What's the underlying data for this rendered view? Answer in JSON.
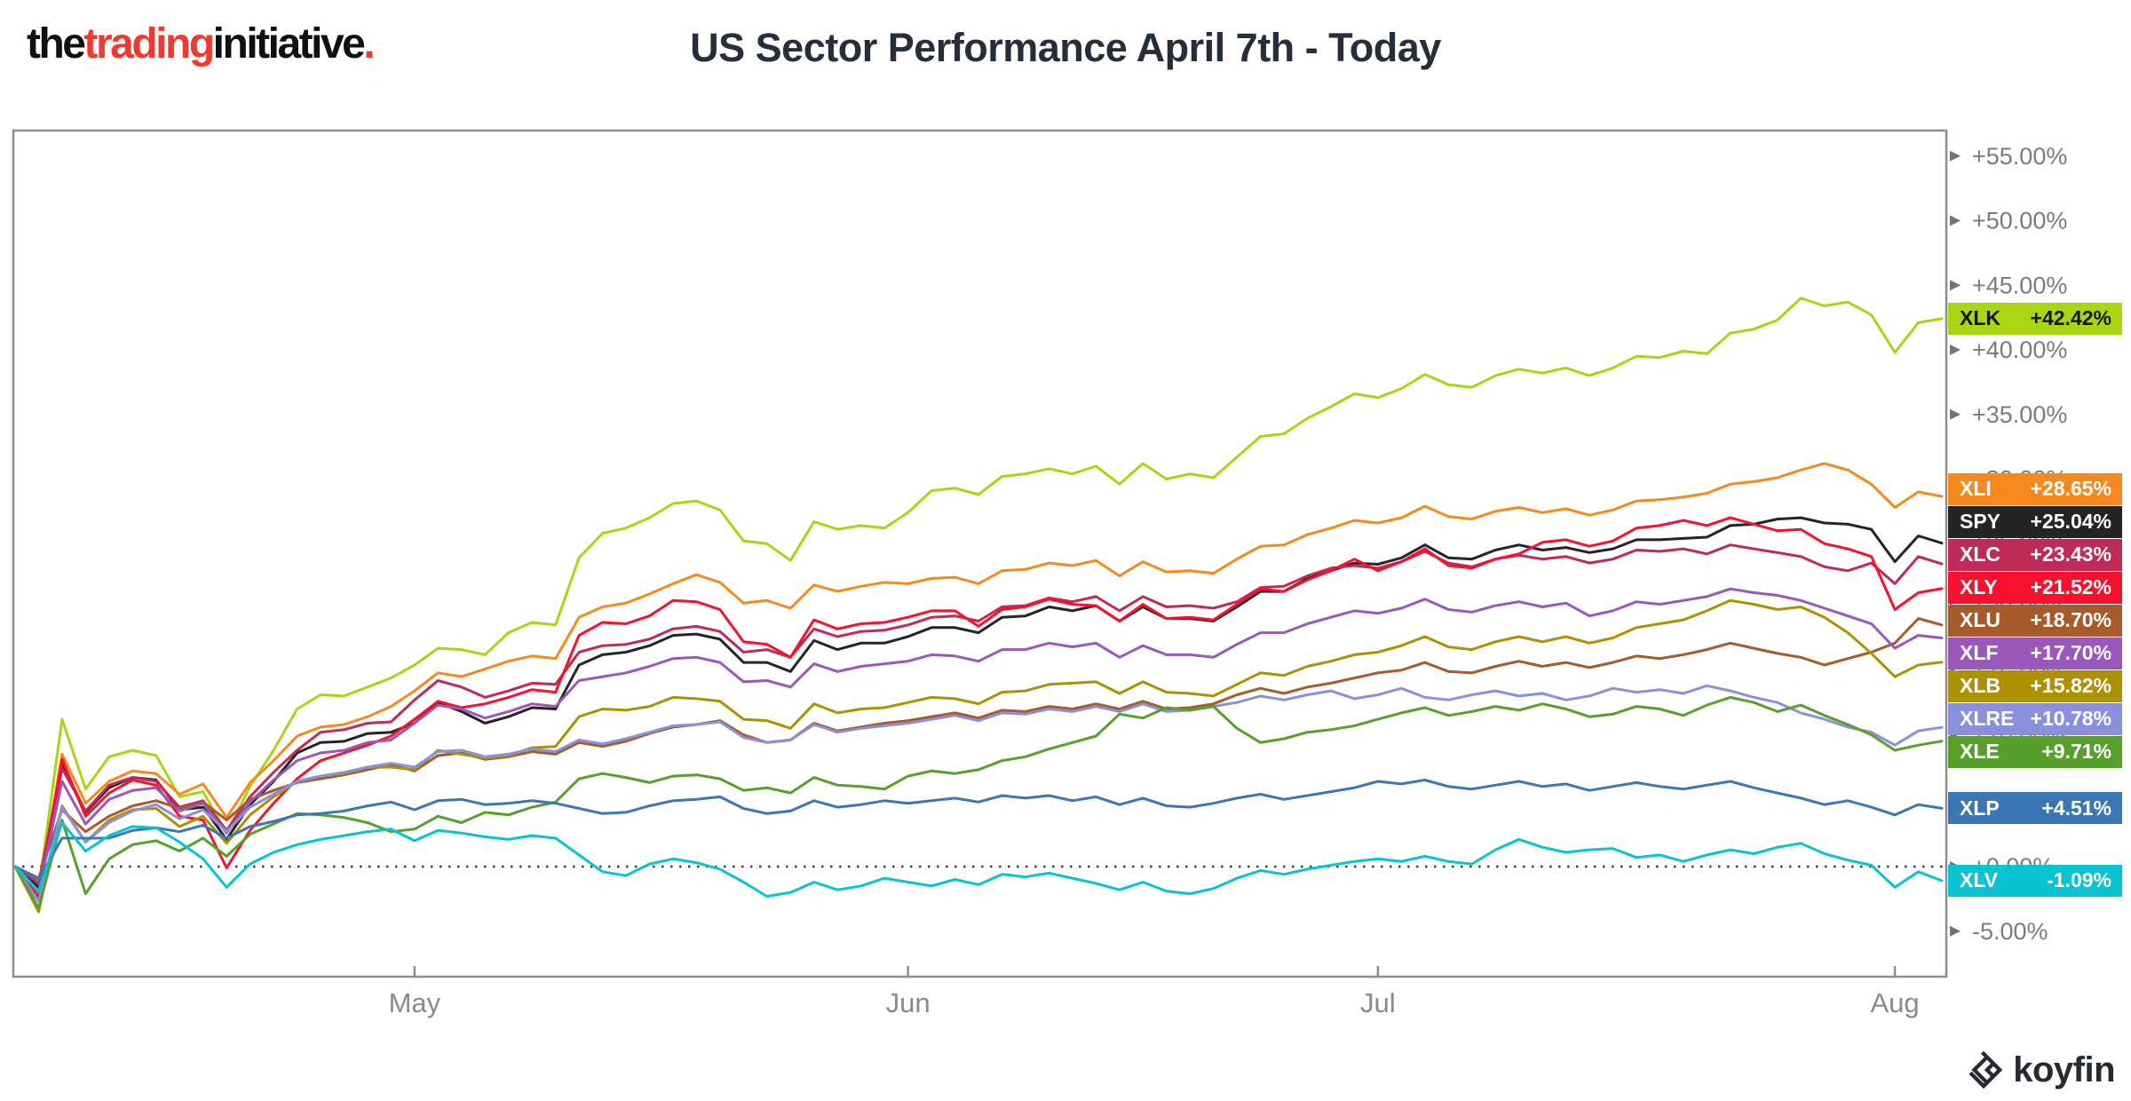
{
  "header": {
    "logo": {
      "p1": "the",
      "p2": "trading",
      "p3": "initiative",
      "p4": "."
    },
    "title": "US Sector Performance April 7th - Today"
  },
  "watermark": {
    "label": "koyfin"
  },
  "chart_data": {
    "type": "line",
    "title": "US Sector Performance April 7th - Today",
    "x_axis": {
      "description": "Daily points, trading days Apr 7 2025 through today (early Aug)",
      "points": 83,
      "ticks": [
        {
          "label": "May",
          "index": 17
        },
        {
          "label": "Jun",
          "index": 38
        },
        {
          "label": "Jul",
          "index": 58
        },
        {
          "label": "Aug",
          "index": 80
        }
      ]
    },
    "y_axis": {
      "unit": "%",
      "zero_line": 0,
      "ticks": [
        {
          "value": 55,
          "label": "+55.00%"
        },
        {
          "value": 50,
          "label": "+50.00%"
        },
        {
          "value": 45,
          "label": "+45.00%"
        },
        {
          "value": 40,
          "label": "+40.00%"
        },
        {
          "value": 35,
          "label": "+35.00%"
        },
        {
          "value": 30,
          "label": "+30.00%"
        },
        {
          "value": 25,
          "label": "+25.00%"
        },
        {
          "value": 20,
          "label": "+20.00%"
        },
        {
          "value": 15,
          "label": "+15.00%"
        },
        {
          "value": 10,
          "label": "+10.00%"
        },
        {
          "value": 5,
          "label": "+5.00%"
        },
        {
          "value": 0,
          "label": "+0.00%"
        },
        {
          "value": -5,
          "label": "-5.00%"
        }
      ]
    },
    "series": [
      {
        "ticker": "XLK",
        "final_value": 42.42,
        "final_label": "+42.42%",
        "color": "#a8d613",
        "badge_text_color": "#161616",
        "values": [
          0,
          -1.8,
          11.4,
          6.0,
          8.5,
          9.0,
          8.6,
          5.4,
          5.8,
          2.6,
          6.2,
          9.0,
          12.2,
          13.3,
          13.2,
          13.9,
          14.6,
          15.6,
          16.9,
          16.8,
          16.4,
          18.1,
          18.9,
          18.7,
          23.9,
          25.8,
          26.2,
          27.0,
          28.1,
          28.3,
          27.6,
          25.2,
          25.0,
          23.7,
          26.7,
          26.1,
          26.4,
          26.2,
          27.4,
          29.1,
          29.3,
          28.8,
          30.2,
          30.4,
          30.8,
          30.4,
          31.0,
          29.6,
          31.2,
          30.0,
          30.4,
          30.1,
          31.7,
          33.3,
          33.5,
          34.7,
          35.6,
          36.6,
          36.3,
          37.0,
          38.1,
          37.3,
          37.1,
          38.0,
          38.5,
          38.2,
          38.6,
          38.0,
          38.6,
          39.5,
          39.4,
          39.9,
          39.7,
          41.3,
          41.6,
          42.3,
          44.0,
          43.4,
          43.7,
          42.7,
          39.8,
          42.1,
          42.42
        ]
      },
      {
        "ticker": "XLI",
        "final_value": 28.65,
        "final_label": "+28.65%",
        "color": "#f8891e",
        "badge_text_color": "#ffffff",
        "values": [
          0,
          -2.1,
          8.7,
          4.9,
          6.6,
          7.4,
          7.2,
          5.6,
          6.4,
          3.8,
          6.5,
          8.2,
          10.1,
          10.8,
          11.0,
          11.6,
          12.4,
          13.6,
          15.0,
          14.7,
          15.3,
          15.9,
          16.3,
          16.1,
          19.3,
          20.1,
          20.4,
          21.1,
          21.9,
          22.6,
          22.0,
          20.4,
          20.6,
          20.0,
          21.8,
          21.3,
          21.7,
          22.0,
          21.9,
          22.3,
          22.4,
          21.9,
          22.9,
          23.0,
          23.5,
          23.3,
          23.7,
          22.5,
          23.6,
          22.8,
          22.9,
          22.7,
          23.8,
          24.8,
          24.9,
          25.7,
          26.2,
          26.8,
          26.6,
          27.0,
          27.9,
          27.1,
          26.9,
          27.5,
          27.8,
          27.4,
          27.7,
          27.2,
          27.6,
          28.3,
          28.4,
          28.6,
          28.9,
          29.6,
          29.8,
          30.1,
          30.7,
          31.2,
          30.7,
          29.6,
          27.8,
          29.0,
          28.65
        ]
      },
      {
        "ticker": "SPY",
        "final_value": 25.04,
        "final_label": "+25.04%",
        "color": "#242424",
        "badge_text_color": "#ffffff",
        "values": [
          0,
          -1.6,
          8.0,
          4.2,
          6.1,
          6.9,
          6.7,
          4.4,
          4.6,
          2.1,
          4.8,
          6.6,
          8.8,
          9.6,
          9.7,
          10.3,
          10.4,
          11.1,
          12.7,
          12.0,
          11.1,
          11.6,
          12.3,
          12.2,
          15.6,
          16.4,
          16.6,
          17.1,
          17.9,
          18.0,
          17.6,
          15.8,
          15.8,
          15.1,
          17.5,
          16.8,
          17.3,
          17.3,
          17.8,
          18.5,
          18.5,
          18.1,
          19.3,
          19.4,
          20.1,
          19.8,
          20.2,
          19.0,
          20.1,
          19.2,
          19.2,
          19.0,
          20.1,
          21.3,
          21.3,
          22.3,
          22.9,
          23.5,
          23.4,
          23.9,
          24.9,
          23.9,
          23.8,
          24.5,
          24.9,
          24.5,
          24.7,
          24.3,
          24.6,
          25.3,
          25.3,
          25.4,
          25.5,
          26.4,
          26.5,
          26.9,
          27.0,
          26.6,
          26.5,
          26.1,
          23.6,
          25.6,
          25.04
        ]
      },
      {
        "ticker": "XLC",
        "final_value": 23.43,
        "final_label": "+23.43%",
        "color": "#c02a57",
        "badge_text_color": "#ffffff",
        "values": [
          0,
          -1.3,
          7.6,
          4.3,
          6.3,
          6.9,
          6.6,
          4.6,
          5.1,
          2.8,
          5.4,
          7.3,
          9.0,
          10.4,
          10.6,
          11.1,
          11.2,
          12.9,
          14.4,
          13.9,
          13.1,
          13.6,
          14.2,
          14.1,
          16.6,
          17.1,
          17.2,
          17.6,
          18.4,
          18.6,
          18.2,
          16.6,
          16.8,
          16.2,
          18.4,
          17.8,
          18.2,
          18.3,
          18.7,
          19.3,
          19.4,
          19.0,
          20.1,
          20.2,
          20.8,
          20.5,
          20.9,
          19.8,
          20.9,
          20.1,
          20.2,
          20.0,
          20.5,
          21.6,
          21.7,
          22.5,
          23.1,
          23.3,
          23.1,
          23.6,
          24.4,
          23.5,
          23.2,
          23.8,
          24.1,
          23.8,
          24.0,
          23.5,
          23.8,
          24.5,
          24.4,
          24.6,
          24.2,
          24.9,
          24.6,
          24.3,
          24.0,
          23.2,
          22.9,
          23.5,
          21.9,
          24.0,
          23.43
        ]
      },
      {
        "ticker": "XLY",
        "final_value": 21.52,
        "final_label": "+21.52%",
        "color": "#f8112e",
        "badge_text_color": "#ffffff",
        "values": [
          0,
          -2.4,
          8.3,
          3.9,
          5.7,
          6.7,
          6.3,
          3.9,
          3.6,
          -0.1,
          2.8,
          4.9,
          6.8,
          8.2,
          8.8,
          9.4,
          10.1,
          11.4,
          12.8,
          12.3,
          12.6,
          13.1,
          13.7,
          13.5,
          17.9,
          18.9,
          18.8,
          19.4,
          20.6,
          20.5,
          19.9,
          17.4,
          17.2,
          16.2,
          19.1,
          18.4,
          18.8,
          18.9,
          19.3,
          19.8,
          19.8,
          18.6,
          19.9,
          20.1,
          20.7,
          20.3,
          20.2,
          19.0,
          20.3,
          19.2,
          19.3,
          19.1,
          20.3,
          21.5,
          21.3,
          22.2,
          22.9,
          23.8,
          22.9,
          23.6,
          24.6,
          23.3,
          23.1,
          23.8,
          24.2,
          25.1,
          25.3,
          24.8,
          25.2,
          26.2,
          26.4,
          26.8,
          26.4,
          27.0,
          26.5,
          26.0,
          26.1,
          25.0,
          24.6,
          24.0,
          19.9,
          21.2,
          21.52
        ]
      },
      {
        "ticker": "XLU",
        "final_value": 18.7,
        "final_label": "+18.70%",
        "color": "#a75a2a",
        "badge_text_color": "#ffffff",
        "values": [
          0,
          -0.9,
          4.4,
          2.7,
          3.9,
          4.7,
          5.1,
          4.5,
          5.0,
          3.6,
          5.2,
          5.9,
          6.5,
          6.8,
          7.1,
          7.5,
          7.9,
          7.4,
          8.6,
          8.8,
          8.3,
          8.5,
          8.9,
          8.7,
          9.6,
          9.3,
          9.7,
          10.3,
          10.8,
          11.0,
          11.3,
          10.2,
          9.6,
          9.8,
          11.1,
          10.5,
          10.8,
          11.1,
          11.3,
          11.6,
          11.9,
          11.5,
          12.1,
          12.0,
          12.4,
          12.2,
          12.6,
          12.2,
          12.8,
          12.2,
          12.3,
          12.6,
          13.3,
          13.8,
          13.4,
          13.9,
          14.2,
          14.6,
          15.0,
          15.2,
          15.8,
          15.1,
          15.0,
          15.5,
          15.9,
          15.5,
          15.8,
          15.4,
          15.8,
          16.3,
          16.1,
          16.4,
          16.8,
          17.3,
          16.9,
          16.5,
          16.2,
          15.6,
          16.1,
          16.6,
          17.3,
          19.2,
          18.7
        ]
      },
      {
        "ticker": "XLF",
        "final_value": 17.7,
        "final_label": "+17.70%",
        "color": "#9b57ba",
        "badge_text_color": "#ffffff",
        "values": [
          0,
          -2.0,
          6.6,
          3.3,
          5.2,
          5.9,
          6.1,
          4.3,
          4.9,
          2.6,
          5.0,
          6.7,
          8.2,
          8.8,
          9.0,
          9.6,
          9.8,
          11.1,
          12.5,
          12.2,
          11.5,
          12.0,
          12.6,
          12.4,
          14.4,
          14.7,
          15.0,
          15.5,
          16.1,
          16.2,
          15.8,
          14.3,
          14.4,
          13.9,
          15.7,
          15.1,
          15.5,
          15.7,
          15.9,
          16.4,
          16.3,
          15.9,
          16.8,
          16.8,
          17.3,
          17.0,
          17.3,
          16.2,
          17.1,
          16.4,
          16.4,
          16.2,
          17.2,
          18.1,
          18.1,
          18.8,
          19.3,
          19.8,
          19.6,
          20.0,
          20.7,
          19.9,
          19.7,
          20.2,
          20.5,
          20.1,
          20.4,
          19.4,
          19.8,
          20.5,
          20.3,
          20.6,
          20.9,
          21.5,
          21.2,
          21.0,
          20.6,
          20.0,
          19.4,
          18.8,
          16.9,
          17.9,
          17.7
        ]
      },
      {
        "ticker": "XLB",
        "final_value": 15.82,
        "final_label": "+15.82%",
        "color": "#ae9102",
        "badge_text_color": "#ffffff",
        "values": [
          0,
          -3.5,
          4.7,
          1.9,
          3.6,
          4.4,
          4.5,
          3.1,
          3.9,
          1.8,
          4.0,
          5.4,
          6.6,
          7.0,
          7.2,
          7.7,
          7.7,
          7.5,
          9.0,
          8.7,
          8.4,
          8.6,
          9.2,
          9.3,
          11.6,
          12.2,
          12.1,
          12.4,
          13.1,
          13.0,
          12.8,
          11.4,
          11.3,
          10.7,
          12.6,
          11.9,
          12.2,
          12.3,
          12.7,
          13.1,
          13.0,
          12.6,
          13.5,
          13.6,
          14.1,
          14.2,
          14.3,
          13.4,
          14.3,
          13.5,
          13.4,
          13.2,
          14.1,
          15.0,
          14.8,
          15.5,
          15.9,
          16.4,
          16.6,
          17.1,
          17.8,
          17.0,
          16.8,
          17.4,
          17.8,
          17.4,
          17.8,
          17.3,
          17.7,
          18.5,
          18.8,
          19.1,
          19.8,
          20.6,
          20.3,
          19.9,
          20.1,
          19.3,
          18.1,
          16.5,
          14.7,
          15.6,
          15.82
        ]
      },
      {
        "ticker": "XLRE",
        "final_value": 10.78,
        "final_label": "+10.78%",
        "color": "#8a90dc",
        "badge_text_color": "#ffffff",
        "values": [
          0,
          -2.7,
          4.6,
          1.9,
          3.4,
          4.3,
          4.8,
          3.7,
          4.4,
          2.7,
          4.6,
          5.6,
          6.6,
          7.0,
          7.3,
          7.7,
          8.0,
          7.7,
          8.9,
          9.0,
          8.5,
          8.7,
          9.1,
          8.9,
          9.8,
          9.5,
          9.9,
          10.4,
          10.9,
          11.0,
          11.2,
          10.0,
          9.6,
          9.8,
          11.0,
          10.4,
          10.7,
          10.9,
          11.1,
          11.4,
          11.7,
          11.3,
          11.9,
          11.8,
          12.2,
          12.0,
          12.4,
          12.0,
          12.6,
          12.0,
          12.1,
          12.4,
          12.7,
          13.2,
          12.9,
          13.3,
          13.6,
          13.0,
          13.3,
          13.8,
          13.1,
          12.9,
          13.3,
          13.6,
          13.2,
          13.4,
          12.9,
          13.2,
          13.8,
          13.5,
          13.7,
          13.4,
          14.0,
          13.6,
          13.1,
          12.7,
          11.9,
          11.4,
          10.8,
          10.4,
          9.4,
          10.5,
          10.78
        ]
      },
      {
        "ticker": "XLE",
        "final_value": 9.71,
        "final_label": "+9.71%",
        "color": "#58a02c",
        "badge_text_color": "#ffffff",
        "values": [
          0,
          -3.2,
          3.6,
          -2.1,
          0.6,
          1.7,
          2.0,
          1.2,
          2.2,
          0.8,
          2.5,
          3.3,
          4.1,
          4.0,
          3.8,
          3.4,
          2.7,
          2.9,
          3.9,
          3.4,
          4.2,
          4.0,
          4.6,
          5.0,
          6.8,
          7.2,
          6.9,
          6.5,
          7.0,
          7.1,
          6.8,
          5.9,
          6.1,
          5.7,
          6.9,
          6.3,
          6.2,
          6.0,
          7.0,
          7.4,
          7.2,
          7.5,
          8.2,
          8.5,
          9.1,
          9.6,
          10.1,
          11.8,
          11.5,
          12.3,
          12.1,
          12.4,
          10.7,
          9.6,
          9.9,
          10.4,
          10.6,
          10.9,
          11.4,
          11.9,
          12.3,
          11.7,
          12.0,
          12.4,
          12.1,
          12.6,
          12.2,
          11.6,
          11.8,
          12.4,
          12.2,
          11.7,
          12.5,
          13.1,
          12.7,
          12.0,
          12.5,
          11.7,
          11.0,
          10.2,
          9.0,
          9.4,
          9.71
        ]
      },
      {
        "ticker": "XLP",
        "final_value": 4.51,
        "final_label": "+4.51%",
        "color": "#3b77b4",
        "badge_text_color": "#ffffff",
        "values": [
          0,
          -1.0,
          2.2,
          2.2,
          2.2,
          2.8,
          3.0,
          2.7,
          3.2,
          2.2,
          3.1,
          3.5,
          4.0,
          4.1,
          4.3,
          4.7,
          5.0,
          4.4,
          5.1,
          5.2,
          4.8,
          4.9,
          5.1,
          4.9,
          4.5,
          4.1,
          4.2,
          4.7,
          5.1,
          5.2,
          5.4,
          4.5,
          4.1,
          4.3,
          5.1,
          4.6,
          4.8,
          5.1,
          4.9,
          5.1,
          5.3,
          5.0,
          5.5,
          5.3,
          5.5,
          5.1,
          5.4,
          4.8,
          5.3,
          4.7,
          4.6,
          4.9,
          5.3,
          5.6,
          5.2,
          5.5,
          5.8,
          6.1,
          6.6,
          6.4,
          6.7,
          6.2,
          6.0,
          6.3,
          6.6,
          6.2,
          6.4,
          5.9,
          6.2,
          6.5,
          6.2,
          6.0,
          6.3,
          6.6,
          6.1,
          5.7,
          5.3,
          4.8,
          5.1,
          4.6,
          4.0,
          4.8,
          4.51
        ]
      },
      {
        "ticker": "XLV",
        "final_value": -1.09,
        "final_label": "-1.09%",
        "color": "#09c3d2",
        "badge_text_color": "#ffffff",
        "values": [
          0,
          -1.9,
          3.4,
          1.2,
          2.4,
          3.1,
          3.0,
          1.9,
          0.6,
          -1.6,
          0.2,
          1.1,
          1.7,
          2.1,
          2.4,
          2.7,
          2.9,
          2.0,
          2.8,
          2.6,
          2.3,
          2.1,
          2.4,
          2.2,
          0.9,
          -0.4,
          -0.7,
          0.2,
          0.6,
          0.3,
          -0.2,
          -1.2,
          -2.3,
          -2.0,
          -1.2,
          -1.8,
          -1.5,
          -0.9,
          -1.2,
          -1.5,
          -1.0,
          -1.4,
          -0.6,
          -0.8,
          -0.5,
          -0.9,
          -1.3,
          -1.8,
          -1.2,
          -1.9,
          -2.1,
          -1.7,
          -0.9,
          -0.3,
          -0.6,
          -0.2,
          0.1,
          0.4,
          0.6,
          0.4,
          0.8,
          0.4,
          0.2,
          1.3,
          2.1,
          1.5,
          1.1,
          1.3,
          1.4,
          0.7,
          0.9,
          0.4,
          0.9,
          1.3,
          1.0,
          1.5,
          1.8,
          1.0,
          0.5,
          0.1,
          -1.6,
          -0.4,
          -1.09
        ]
      }
    ]
  }
}
